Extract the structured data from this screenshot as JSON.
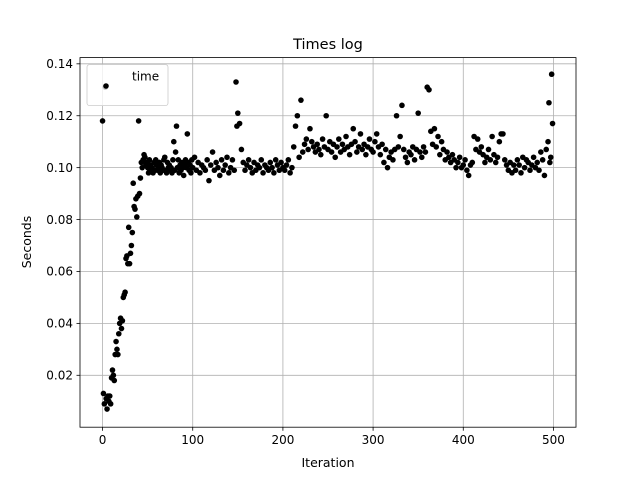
{
  "chart_data": {
    "type": "scatter",
    "title": "Times log",
    "xlabel": "Iteration",
    "ylabel": "Seconds",
    "xlim": [
      -25,
      525
    ],
    "ylim": [
      0.0,
      0.1424
    ],
    "xticks": [
      0,
      100,
      200,
      300,
      400,
      500
    ],
    "yticks": [
      0.02,
      0.04,
      0.06,
      0.08,
      0.1,
      0.12,
      0.14
    ],
    "ytick_labels": [
      "0.02",
      "0.04",
      "0.06",
      "0.08",
      "0.10",
      "0.12",
      "0.14"
    ],
    "grid": true,
    "legend": "top-left",
    "marker_color": "#000000",
    "series": [
      {
        "name": "time",
        "points": [
          [
            0,
            0.118
          ],
          [
            1,
            0.013
          ],
          [
            2,
            0.009
          ],
          [
            3,
            0.131
          ],
          [
            4,
            0.011
          ],
          [
            5,
            0.007
          ],
          [
            6,
            0.012
          ],
          [
            7,
            0.01
          ],
          [
            8,
            0.012
          ],
          [
            9,
            0.009
          ],
          [
            10,
            0.019
          ],
          [
            11,
            0.022
          ],
          [
            12,
            0.02
          ],
          [
            13,
            0.018
          ],
          [
            14,
            0.028
          ],
          [
            15,
            0.033
          ],
          [
            16,
            0.03
          ],
          [
            17,
            0.028
          ],
          [
            18,
            0.036
          ],
          [
            19,
            0.04
          ],
          [
            20,
            0.042
          ],
          [
            21,
            0.038
          ],
          [
            22,
            0.041
          ],
          [
            23,
            0.05
          ],
          [
            24,
            0.051
          ],
          [
            25,
            0.052
          ],
          [
            26,
            0.065
          ],
          [
            27,
            0.066
          ],
          [
            28,
            0.063
          ],
          [
            29,
            0.077
          ],
          [
            30,
            0.063
          ],
          [
            31,
            0.067
          ],
          [
            32,
            0.07
          ],
          [
            33,
            0.075
          ],
          [
            34,
            0.094
          ],
          [
            35,
            0.085
          ],
          [
            36,
            0.084
          ],
          [
            37,
            0.088
          ],
          [
            38,
            0.081
          ],
          [
            39,
            0.089
          ],
          [
            40,
            0.118
          ],
          [
            41,
            0.09
          ],
          [
            42,
            0.096
          ],
          [
            43,
            0.102
          ],
          [
            44,
            0.1
          ],
          [
            45,
            0.103
          ],
          [
            46,
            0.105
          ],
          [
            47,
            0.104
          ],
          [
            48,
            0.101
          ],
          [
            49,
            0.102
          ],
          [
            50,
            0.1
          ],
          [
            51,
            0.098
          ],
          [
            52,
            0.103
          ],
          [
            53,
            0.101
          ],
          [
            54,
            0.099
          ],
          [
            55,
            0.1
          ],
          [
            56,
            0.098
          ],
          [
            57,
            0.102
          ],
          [
            58,
            0.099
          ],
          [
            59,
            0.103
          ],
          [
            60,
            0.101
          ],
          [
            61,
            0.099
          ],
          [
            62,
            0.1
          ],
          [
            63,
            0.102
          ],
          [
            64,
            0.098
          ],
          [
            65,
            0.101
          ],
          [
            66,
            0.1
          ],
          [
            67,
            0.099
          ],
          [
            68,
            0.103
          ],
          [
            69,
            0.104
          ],
          [
            70,
            0.099
          ],
          [
            71,
            0.098
          ],
          [
            72,
            0.102
          ],
          [
            73,
            0.1
          ],
          [
            74,
            0.101
          ],
          [
            75,
            0.099
          ],
          [
            76,
            0.1
          ],
          [
            77,
            0.098
          ],
          [
            78,
            0.103
          ],
          [
            79,
            0.11
          ],
          [
            80,
            0.099
          ],
          [
            81,
            0.106
          ],
          [
            82,
            0.116
          ],
          [
            83,
            0.1
          ],
          [
            84,
            0.103
          ],
          [
            85,
            0.098
          ],
          [
            86,
            0.101
          ],
          [
            87,
            0.099
          ],
          [
            88,
            0.102
          ],
          [
            89,
            0.1
          ],
          [
            90,
            0.097
          ],
          [
            91,
            0.101
          ],
          [
            92,
            0.103
          ],
          [
            93,
            0.1
          ],
          [
            94,
            0.113
          ],
          [
            95,
            0.102
          ],
          [
            96,
            0.099
          ],
          [
            97,
            0.101
          ],
          [
            98,
            0.098
          ],
          [
            99,
            0.103
          ],
          [
            100,
            0.1
          ],
          [
            102,
            0.104
          ],
          [
            104,
            0.099
          ],
          [
            106,
            0.102
          ],
          [
            108,
            0.098
          ],
          [
            110,
            0.101
          ],
          [
            112,
            0.1
          ],
          [
            114,
            0.099
          ],
          [
            116,
            0.103
          ],
          [
            118,
            0.095
          ],
          [
            120,
            0.101
          ],
          [
            122,
            0.106
          ],
          [
            124,
            0.099
          ],
          [
            126,
            0.102
          ],
          [
            128,
            0.1
          ],
          [
            130,
            0.097
          ],
          [
            132,
            0.103
          ],
          [
            134,
            0.099
          ],
          [
            136,
            0.101
          ],
          [
            138,
            0.104
          ],
          [
            140,
            0.098
          ],
          [
            142,
            0.1
          ],
          [
            144,
            0.103
          ],
          [
            146,
            0.099
          ],
          [
            148,
            0.133
          ],
          [
            149,
            0.116
          ],
          [
            150,
            0.121
          ],
          [
            152,
            0.117
          ],
          [
            154,
            0.107
          ],
          [
            156,
            0.102
          ],
          [
            158,
            0.099
          ],
          [
            160,
            0.101
          ],
          [
            162,
            0.103
          ],
          [
            164,
            0.1
          ],
          [
            166,
            0.098
          ],
          [
            168,
            0.102
          ],
          [
            170,
            0.099
          ],
          [
            172,
            0.101
          ],
          [
            174,
            0.1
          ],
          [
            176,
            0.103
          ],
          [
            178,
            0.098
          ],
          [
            180,
            0.101
          ],
          [
            182,
            0.1
          ],
          [
            184,
            0.099
          ],
          [
            186,
            0.102
          ],
          [
            188,
            0.1
          ],
          [
            190,
            0.098
          ],
          [
            192,
            0.103
          ],
          [
            194,
            0.101
          ],
          [
            196,
            0.099
          ],
          [
            198,
            0.102
          ],
          [
            200,
            0.1
          ],
          [
            202,
            0.099
          ],
          [
            204,
            0.101
          ],
          [
            206,
            0.103
          ],
          [
            208,
            0.098
          ],
          [
            210,
            0.1
          ],
          [
            212,
            0.108
          ],
          [
            214,
            0.116
          ],
          [
            216,
            0.12
          ],
          [
            218,
            0.104
          ],
          [
            220,
            0.126
          ],
          [
            222,
            0.106
          ],
          [
            224,
            0.109
          ],
          [
            226,
            0.111
          ],
          [
            228,
            0.107
          ],
          [
            230,
            0.115
          ],
          [
            232,
            0.11
          ],
          [
            234,
            0.108
          ],
          [
            236,
            0.106
          ],
          [
            238,
            0.109
          ],
          [
            240,
            0.107
          ],
          [
            242,
            0.105
          ],
          [
            244,
            0.111
          ],
          [
            246,
            0.108
          ],
          [
            248,
            0.12
          ],
          [
            250,
            0.107
          ],
          [
            252,
            0.11
          ],
          [
            254,
            0.106
          ],
          [
            256,
            0.109
          ],
          [
            258,
            0.104
          ],
          [
            260,
            0.108
          ],
          [
            262,
            0.111
          ],
          [
            264,
            0.106
          ],
          [
            266,
            0.109
          ],
          [
            268,
            0.107
          ],
          [
            270,
            0.112
          ],
          [
            272,
            0.108
          ],
          [
            274,
            0.105
          ],
          [
            276,
            0.109
          ],
          [
            278,
            0.115
          ],
          [
            280,
            0.11
          ],
          [
            282,
            0.106
          ],
          [
            284,
            0.108
          ],
          [
            286,
            0.113
          ],
          [
            288,
            0.107
          ],
          [
            290,
            0.109
          ],
          [
            292,
            0.105
          ],
          [
            294,
            0.108
          ],
          [
            296,
            0.111
          ],
          [
            298,
            0.107
          ],
          [
            300,
            0.106
          ],
          [
            302,
            0.11
          ],
          [
            304,
            0.113
          ],
          [
            306,
            0.108
          ],
          [
            308,
            0.105
          ],
          [
            310,
            0.109
          ],
          [
            312,
            0.102
          ],
          [
            314,
            0.107
          ],
          [
            316,
            0.1
          ],
          [
            318,
            0.104
          ],
          [
            320,
            0.106
          ],
          [
            322,
            0.103
          ],
          [
            324,
            0.107
          ],
          [
            326,
            0.12
          ],
          [
            328,
            0.108
          ],
          [
            330,
            0.112
          ],
          [
            332,
            0.124
          ],
          [
            334,
            0.107
          ],
          [
            336,
            0.104
          ],
          [
            338,
            0.102
          ],
          [
            340,
            0.106
          ],
          [
            342,
            0.105
          ],
          [
            344,
            0.108
          ],
          [
            346,
            0.103
          ],
          [
            348,
            0.107
          ],
          [
            350,
            0.121
          ],
          [
            352,
            0.106
          ],
          [
            354,
            0.104
          ],
          [
            356,
            0.108
          ],
          [
            358,
            0.106
          ],
          [
            360,
            0.131
          ],
          [
            362,
            0.13
          ],
          [
            364,
            0.114
          ],
          [
            366,
            0.109
          ],
          [
            368,
            0.115
          ],
          [
            370,
            0.108
          ],
          [
            372,
            0.112
          ],
          [
            374,
            0.105
          ],
          [
            376,
            0.11
          ],
          [
            378,
            0.107
          ],
          [
            380,
            0.103
          ],
          [
            382,
            0.106
          ],
          [
            384,
            0.104
          ],
          [
            386,
            0.102
          ],
          [
            388,
            0.105
          ],
          [
            390,
            0.103
          ],
          [
            392,
            0.1
          ],
          [
            394,
            0.102
          ],
          [
            396,
            0.104
          ],
          [
            398,
            0.1
          ],
          [
            400,
            0.101
          ],
          [
            402,
            0.103
          ],
          [
            404,
            0.099
          ],
          [
            406,
            0.097
          ],
          [
            408,
            0.101
          ],
          [
            410,
            0.102
          ],
          [
            412,
            0.112
          ],
          [
            414,
            0.107
          ],
          [
            416,
            0.111
          ],
          [
            418,
            0.106
          ],
          [
            420,
            0.108
          ],
          [
            422,
            0.105
          ],
          [
            424,
            0.102
          ],
          [
            426,
            0.104
          ],
          [
            428,
            0.107
          ],
          [
            430,
            0.103
          ],
          [
            432,
            0.112
          ],
          [
            434,
            0.105
          ],
          [
            436,
            0.102
          ],
          [
            438,
            0.104
          ],
          [
            440,
            0.11
          ],
          [
            442,
            0.113
          ],
          [
            444,
            0.113
          ],
          [
            446,
            0.103
          ],
          [
            448,
            0.101
          ],
          [
            450,
            0.099
          ],
          [
            452,
            0.102
          ],
          [
            454,
            0.098
          ],
          [
            456,
            0.101
          ],
          [
            458,
            0.099
          ],
          [
            460,
            0.103
          ],
          [
            462,
            0.101
          ],
          [
            464,
            0.098
          ],
          [
            466,
            0.104
          ],
          [
            468,
            0.1
          ],
          [
            470,
            0.103
          ],
          [
            472,
            0.102
          ],
          [
            474,
            0.099
          ],
          [
            476,
            0.101
          ],
          [
            478,
            0.104
          ],
          [
            480,
            0.1
          ],
          [
            482,
            0.102
          ],
          [
            484,
            0.099
          ],
          [
            486,
            0.106
          ],
          [
            488,
            0.103
          ],
          [
            490,
            0.097
          ],
          [
            492,
            0.107
          ],
          [
            494,
            0.11
          ],
          [
            495,
            0.125
          ],
          [
            496,
            0.102
          ],
          [
            497,
            0.104
          ],
          [
            498,
            0.136
          ],
          [
            499,
            0.117
          ]
        ]
      }
    ]
  }
}
